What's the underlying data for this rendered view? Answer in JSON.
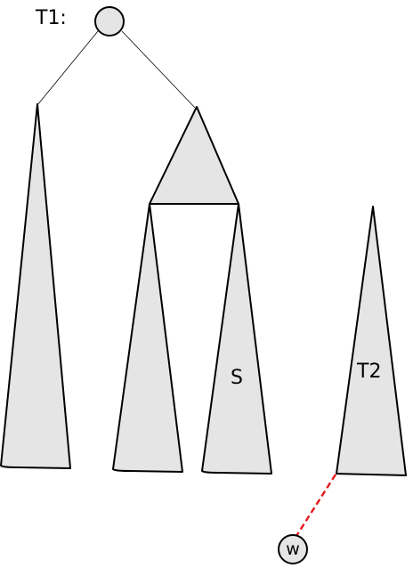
{
  "labels": {
    "tree1": "T1:",
    "subtree_s": "S",
    "tree2": "T2",
    "node_w": "w"
  },
  "colors": {
    "fill": "#e5e5e5",
    "stroke": "#000000",
    "dashed_edge": "#e41a1c"
  },
  "icons": {
    "root": "circle-node",
    "leaf": "circle-node"
  }
}
